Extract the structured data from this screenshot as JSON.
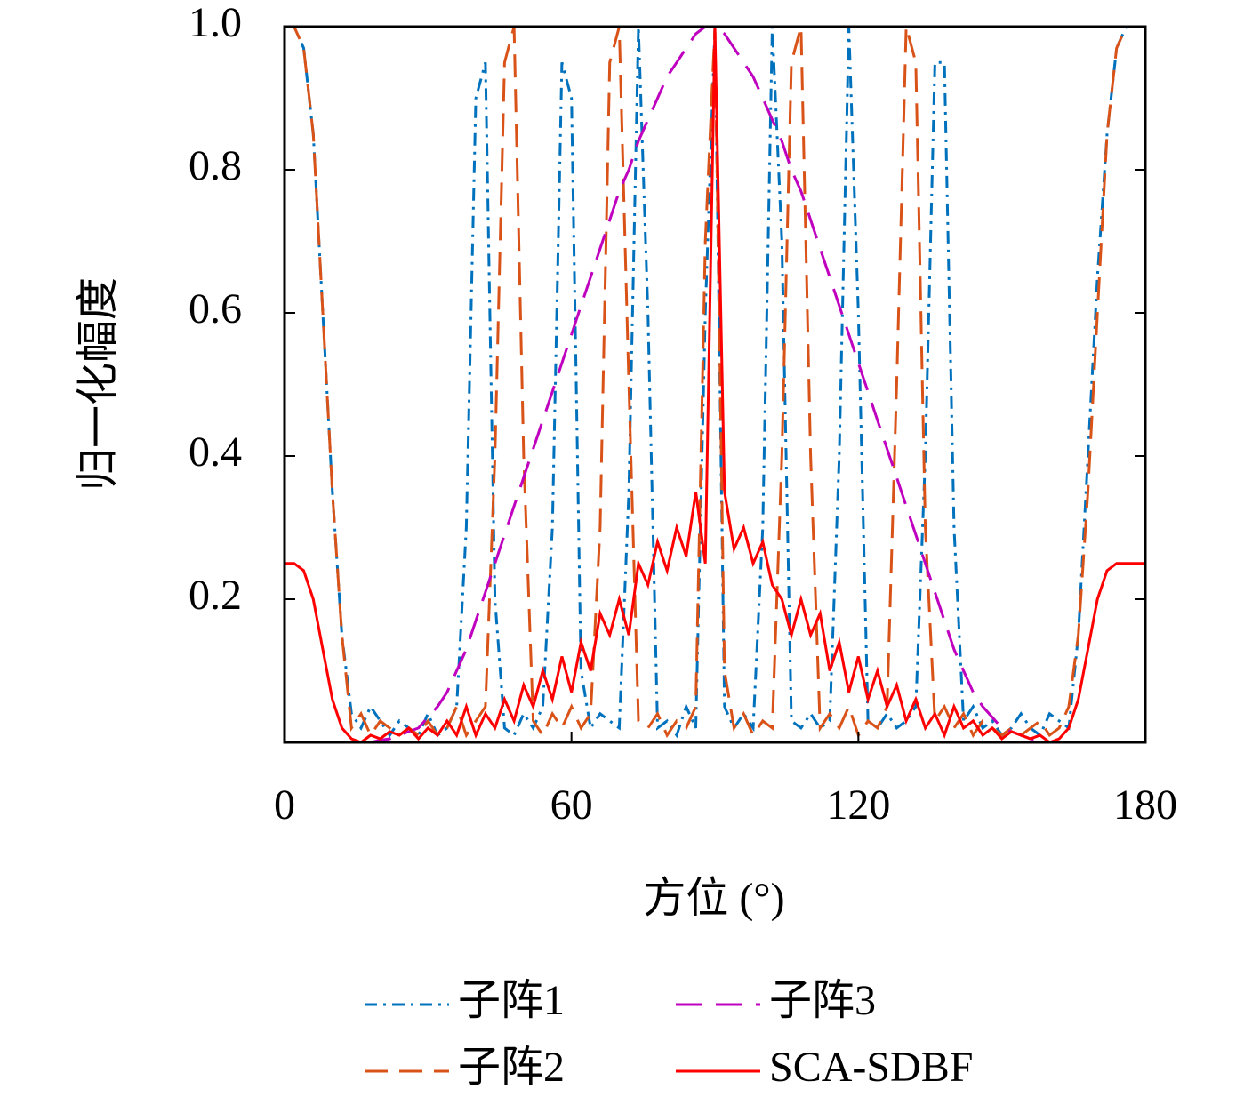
{
  "chart_data": {
    "type": "line",
    "xlabel": "方位 (°)",
    "ylabel": "归一化幅度",
    "xlim": [
      0,
      180
    ],
    "xticks": [
      0,
      60,
      120,
      180
    ],
    "ylim": [
      0,
      1
    ],
    "yticks": [
      0.2,
      0.4,
      0.6,
      0.8,
      {
        "value": 1,
        "label": "1.0"
      }
    ],
    "grid": false,
    "legend": "bottom",
    "x": [
      0,
      2,
      4,
      6,
      8,
      10,
      12,
      14,
      16,
      18,
      20,
      22,
      24,
      26,
      28,
      30,
      32,
      34,
      36,
      38,
      40,
      42,
      44,
      46,
      48,
      50,
      52,
      54,
      56,
      58,
      60,
      62,
      64,
      66,
      68,
      70,
      72,
      74,
      76,
      78,
      80,
      82,
      84,
      86,
      88,
      90,
      92,
      94,
      96,
      98,
      100,
      102,
      104,
      106,
      108,
      110,
      112,
      114,
      116,
      118,
      120,
      122,
      124,
      126,
      128,
      130,
      132,
      134,
      136,
      138,
      140,
      142,
      144,
      146,
      148,
      150,
      152,
      154,
      156,
      158,
      160,
      162,
      164,
      166,
      168,
      170,
      172,
      174,
      176,
      178,
      180
    ],
    "series": [
      {
        "name": "子阵1",
        "color": "#0072bd",
        "dash": "14 7 3 7",
        "values": [
          1,
          1,
          0.97,
          0.85,
          0.6,
          0.35,
          0.15,
          0.04,
          0.02,
          0.05,
          0.03,
          0.01,
          0.03,
          0.02,
          0.01,
          0.04,
          0.01,
          0.02,
          0.05,
          0.3,
          0.9,
          0.95,
          0.2,
          0.02,
          0.01,
          0.04,
          0.02,
          0.05,
          0.3,
          0.95,
          0.9,
          0.1,
          0.02,
          0.04,
          0.03,
          0.02,
          0.35,
          1,
          0.6,
          0.02,
          0.03,
          0.01,
          0.05,
          0.02,
          0.6,
          1,
          0.05,
          0.02,
          0.04,
          0.02,
          0.3,
          1,
          0.7,
          0.03,
          0.02,
          0.04,
          0.02,
          0.03,
          0.4,
          1,
          0.6,
          0.03,
          0.02,
          0.04,
          0.02,
          0.03,
          0.05,
          0.4,
          0.95,
          0.95,
          0.3,
          0.03,
          0.05,
          0.02,
          0.03,
          0.01,
          0.02,
          0.04,
          0.02,
          0.01,
          0.04,
          0.03,
          0.02,
          0.15,
          0.4,
          0.65,
          0.85,
          0.97,
          1,
          1,
          1
        ]
      },
      {
        "name": "子阵2",
        "color": "#d95319",
        "dash": "26 13",
        "values": [
          1,
          1,
          0.97,
          0.85,
          0.6,
          0.35,
          0.15,
          0.02,
          0.04,
          0.01,
          0.03,
          0.02,
          0.01,
          0.02,
          0.01,
          0.03,
          0.01,
          0.02,
          0.05,
          0.01,
          0.03,
          0.05,
          0.4,
          0.95,
          1,
          0.4,
          0.03,
          0.01,
          0.04,
          0.02,
          0.05,
          0.02,
          0.04,
          0.3,
          0.95,
          1,
          0.5,
          0.03,
          0.02,
          0.04,
          0.01,
          0.03,
          0.02,
          0.05,
          0.7,
          1,
          0.1,
          0.02,
          0.04,
          0.01,
          0.03,
          0.02,
          0.4,
          0.95,
          1,
          0.4,
          0.02,
          0.04,
          0.02,
          0.05,
          0.01,
          0.03,
          0.02,
          0.05,
          0.5,
          1,
          0.95,
          0.3,
          0.03,
          0.05,
          0.02,
          0.04,
          0.01,
          0.03,
          0.02,
          0.01,
          0.02,
          0.01,
          0.02,
          0.03,
          0.01,
          0.02,
          0.05,
          0.15,
          0.35,
          0.6,
          0.85,
          0.97,
          1,
          1,
          1
        ]
      },
      {
        "name": "子阵3",
        "color": "#bf00bf",
        "dash": "30 15",
        "values": [
          0,
          0,
          0,
          0,
          0,
          0,
          0,
          0,
          0,
          0,
          0.003,
          0.005,
          0.01,
          0.015,
          0.02,
          0.035,
          0.05,
          0.07,
          0.1,
          0.13,
          0.17,
          0.21,
          0.25,
          0.29,
          0.33,
          0.37,
          0.41,
          0.45,
          0.49,
          0.53,
          0.57,
          0.61,
          0.65,
          0.69,
          0.73,
          0.77,
          0.8,
          0.84,
          0.87,
          0.9,
          0.93,
          0.95,
          0.97,
          0.99,
          1,
          1,
          0.99,
          0.97,
          0.95,
          0.93,
          0.9,
          0.87,
          0.84,
          0.8,
          0.77,
          0.73,
          0.69,
          0.65,
          0.61,
          0.57,
          0.53,
          0.49,
          0.45,
          0.41,
          0.37,
          0.33,
          0.29,
          0.25,
          0.21,
          0.17,
          0.13,
          0.1,
          0.07,
          0.05,
          0.035,
          0.02,
          0.015,
          0.01,
          0.005,
          0.003,
          0,
          0,
          0,
          0,
          0,
          0,
          0,
          0,
          0,
          0,
          0
        ]
      },
      {
        "name": "SCA-SDBF",
        "color": "#ff0000",
        "dash": "",
        "values": [
          0.25,
          0.25,
          0.24,
          0.2,
          0.13,
          0.06,
          0.02,
          0.005,
          0,
          0.01,
          0.005,
          0.015,
          0.01,
          0.02,
          0.005,
          0.02,
          0.01,
          0.03,
          0.01,
          0.05,
          0.01,
          0.04,
          0.02,
          0.06,
          0.03,
          0.08,
          0.05,
          0.1,
          0.06,
          0.12,
          0.07,
          0.14,
          0.1,
          0.18,
          0.15,
          0.2,
          0.15,
          0.25,
          0.22,
          0.28,
          0.24,
          0.3,
          0.26,
          0.35,
          0.25,
          1,
          0.35,
          0.27,
          0.3,
          0.25,
          0.28,
          0.22,
          0.2,
          0.15,
          0.2,
          0.15,
          0.18,
          0.1,
          0.14,
          0.07,
          0.12,
          0.06,
          0.1,
          0.05,
          0.08,
          0.03,
          0.06,
          0.02,
          0.04,
          0.01,
          0.05,
          0.02,
          0.03,
          0.01,
          0.02,
          0.005,
          0.015,
          0.01,
          0.005,
          0.01,
          0,
          0.005,
          0.02,
          0.06,
          0.13,
          0.2,
          0.24,
          0.25,
          0.25,
          0.25,
          0.25
        ]
      }
    ]
  }
}
